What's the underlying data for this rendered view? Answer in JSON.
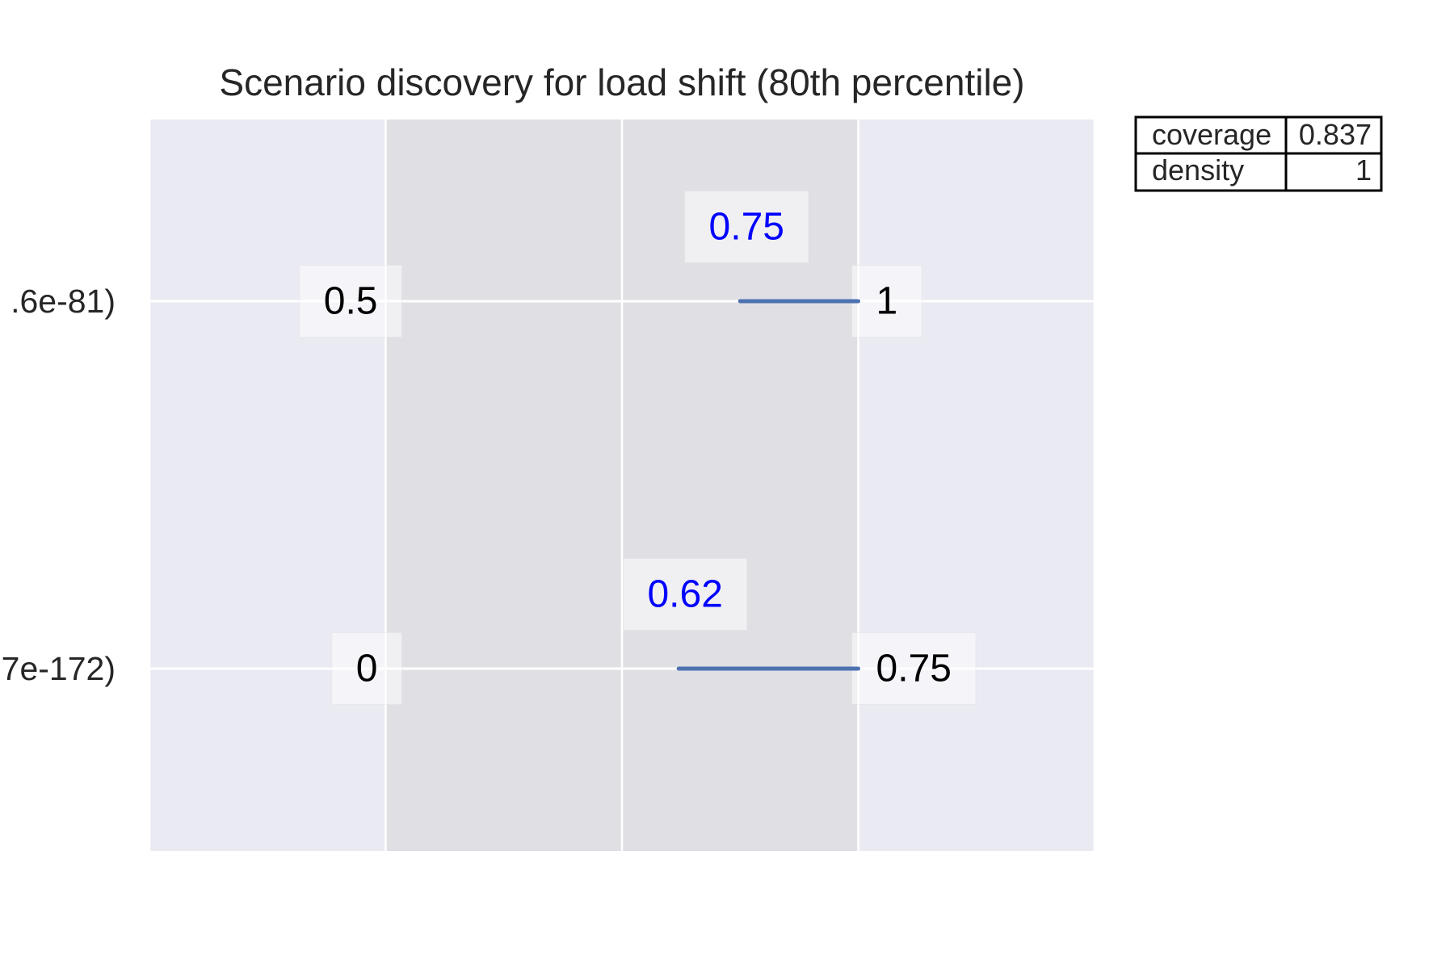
{
  "chart_data": {
    "type": "range-bar",
    "title": "Scenario discovery for load shift (80th percentile)",
    "grid": true,
    "xlim": [
      -0.5,
      1.5
    ],
    "shaded_region": [
      0,
      1
    ],
    "xgrid": [
      -0.5,
      0,
      0.5,
      1,
      1.5
    ],
    "rows": [
      {
        "label": ".6e-81)",
        "limit_min": "0.5",
        "limit_max": "1",
        "box_min": 0.75,
        "box_max": 1,
        "box_min_label": "0.75"
      },
      {
        "label": "7e-172)",
        "limit_min": "0",
        "limit_max": "0.75",
        "box_min": 0.62,
        "box_max": 1,
        "box_min_label": "0.62"
      }
    ],
    "stats_table": [
      {
        "name": "coverage",
        "value": "0.837"
      },
      {
        "name": "density",
        "value": "1"
      }
    ],
    "colors": {
      "plot_background": "#eaeaf2",
      "shaded_band": "#e0dfe4",
      "grid": "#ffffff",
      "box_line": "#4c72b0",
      "box_label": "#0000ff",
      "bound_label": "#000000"
    }
  }
}
